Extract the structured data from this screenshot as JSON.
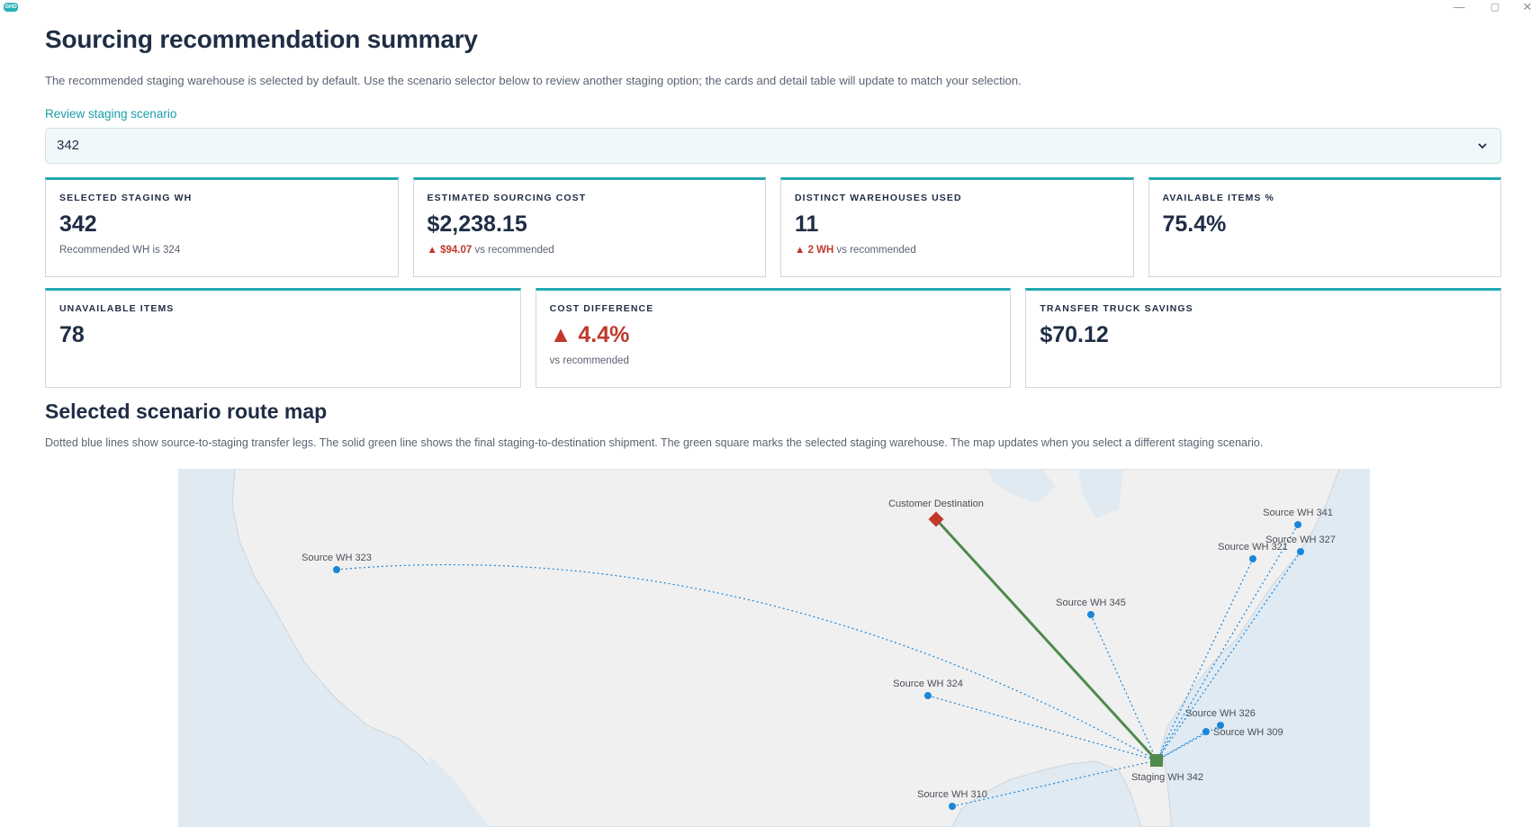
{
  "app": {
    "logo_text": "GHD",
    "window_controls": {
      "minimize": "—",
      "maximize": "▢",
      "close": "✕"
    }
  },
  "header": {
    "title": "Sourcing recommendation summary",
    "intro": "The recommended staging warehouse is selected by default. Use the scenario selector below to review another staging option; the cards and detail table will update to match your selection."
  },
  "scenario_selector": {
    "label": "Review staging scenario",
    "value": "342"
  },
  "cards": {
    "staging": {
      "label": "SELECTED STAGING WH",
      "value": "342",
      "sub": "Recommended WH is 324"
    },
    "cost": {
      "label": "ESTIMATED SOURCING COST",
      "value": "$2,238.15",
      "delta": "▲ $94.07",
      "sub": " vs recommended"
    },
    "warehouses": {
      "label": "DISTINCT WAREHOUSES USED",
      "value": "11",
      "delta": "▲ 2 WH",
      "sub": " vs recommended"
    },
    "available": {
      "label": "AVAILABLE ITEMS %",
      "value": "75.4%"
    },
    "unavailable": {
      "label": "UNAVAILABLE ITEMS",
      "value": "78"
    },
    "cost_diff": {
      "label": "COST DIFFERENCE",
      "value": "▲ 4.4%",
      "sub": "vs recommended"
    },
    "truck_savings": {
      "label": "TRANSFER TRUCK SAVINGS",
      "value": "$70.12"
    }
  },
  "route_map": {
    "title": "Selected scenario route map",
    "note": "Dotted blue lines show source-to-staging transfer legs. The solid green line shows the final staging-to-destination shipment. The green square marks the selected staging warehouse. The map updates when you select a different staging scenario.",
    "colors": {
      "transfer": "#1a86d8",
      "final": "#4f8a4b",
      "staging": "#4f8a4b",
      "destination": "#c0392b",
      "land": "#f1f1f1",
      "water": "#dfeaf3"
    },
    "staging_label": "Staging WH 342",
    "destination_label": "Customer Destination",
    "source_labels": [
      "Source WH 323",
      "Source WH 341",
      "Source WH 327",
      "Source WH 321",
      "Source WH 345",
      "Source WH 324",
      "Source WH 326",
      "Source WH 309",
      "Source WH 310"
    ]
  }
}
